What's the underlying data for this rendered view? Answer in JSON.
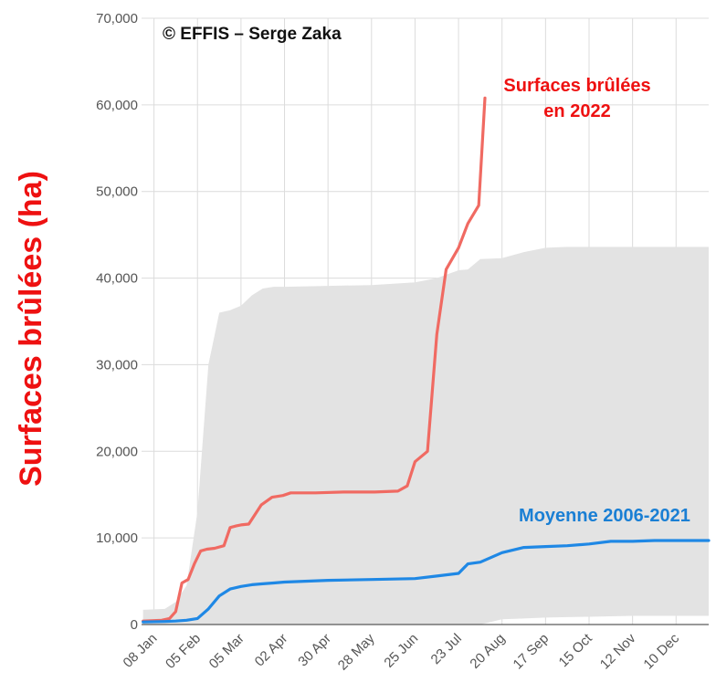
{
  "chart_data": {
    "type": "line",
    "credit": "© EFFIS – Serge Zaka",
    "xlabel": "",
    "ylabel": "Surfaces brûlées (ha)",
    "ylim": [
      0,
      70000
    ],
    "x_ticks": [
      {
        "label": "08 Jan",
        "day": 8
      },
      {
        "label": "05 Feb",
        "day": 36
      },
      {
        "label": "05 Mar",
        "day": 64
      },
      {
        "label": "02 Apr",
        "day": 92
      },
      {
        "label": "30 Apr",
        "day": 120
      },
      {
        "label": "28 May",
        "day": 148
      },
      {
        "label": "25 Jun",
        "day": 176
      },
      {
        "label": "23 Jul",
        "day": 204
      },
      {
        "label": "20 Aug",
        "day": 232
      },
      {
        "label": "17 Sep",
        "day": 260
      },
      {
        "label": "15 Oct",
        "day": 288
      },
      {
        "label": "12 Nov",
        "day": 316
      },
      {
        "label": "10 Dec",
        "day": 344
      }
    ],
    "y_ticks": [
      {
        "label": "0",
        "value": 0
      },
      {
        "label": "10,000",
        "value": 10000
      },
      {
        "label": "20,000",
        "value": 20000
      },
      {
        "label": "30,000",
        "value": 30000
      },
      {
        "label": "40,000",
        "value": 40000
      },
      {
        "label": "50,000",
        "value": 50000
      },
      {
        "label": "60,000",
        "value": 60000
      },
      {
        "label": "70,000",
        "value": 70000
      }
    ],
    "grid": true,
    "range_band": {
      "color": "#e3e3e3",
      "x": [
        1,
        15,
        22,
        29,
        36,
        43,
        50,
        57,
        64,
        71,
        78,
        85,
        92,
        120,
        148,
        176,
        190,
        204,
        210,
        218,
        232,
        246,
        260,
        274,
        288,
        302,
        316,
        330,
        344,
        365
      ],
      "upper": [
        1700,
        1800,
        2600,
        4500,
        13000,
        30000,
        36000,
        36300,
        36800,
        38000,
        38800,
        39000,
        39000,
        39100,
        39200,
        39500,
        40000,
        40900,
        41000,
        42200,
        42300,
        43000,
        43500,
        43600,
        43600,
        43600,
        43600,
        43600,
        43600,
        43600
      ],
      "lower": [
        0,
        0,
        0,
        0,
        0,
        0,
        0,
        0,
        0,
        0,
        0,
        0,
        0,
        0,
        0,
        0,
        0,
        0,
        0,
        0,
        600,
        700,
        800,
        850,
        900,
        950,
        1000,
        1000,
        1000,
        1000
      ]
    },
    "series": [
      {
        "name": "Surfaces brûlées en 2022",
        "label_lines": [
          "Surfaces brûlées",
          "en 2022"
        ],
        "color": "#f06a62",
        "x": [
          1,
          13,
          18,
          22,
          26,
          30,
          34,
          38,
          42,
          47,
          53,
          57,
          61,
          64,
          69,
          77,
          84,
          91,
          96,
          102,
          112,
          130,
          150,
          165,
          171,
          176,
          184,
          190,
          196,
          204,
          210,
          217,
          221
        ],
        "y": [
          400,
          500,
          700,
          1500,
          4800,
          5200,
          7000,
          8500,
          8700,
          8800,
          9100,
          11200,
          11400,
          11500,
          11600,
          13800,
          14700,
          14900,
          15200,
          15200,
          15200,
          15300,
          15300,
          15400,
          16000,
          18800,
          20000,
          33500,
          41000,
          43500,
          46300,
          48400,
          60800
        ]
      },
      {
        "name": "Moyenne 2006-2021",
        "label_lines": [
          "Moyenne 2006-2021"
        ],
        "color": "#1f88e5",
        "x": [
          1,
          15,
          22,
          29,
          36,
          43,
          50,
          57,
          64,
          71,
          78,
          85,
          92,
          120,
          148,
          176,
          190,
          204,
          210,
          218,
          232,
          246,
          260,
          274,
          288,
          302,
          316,
          330,
          344,
          365
        ],
        "y": [
          300,
          350,
          400,
          500,
          700,
          1800,
          3300,
          4100,
          4400,
          4600,
          4700,
          4800,
          4900,
          5100,
          5200,
          5300,
          5600,
          5900,
          7000,
          7200,
          8300,
          8900,
          9000,
          9100,
          9300,
          9600,
          9600,
          9700,
          9700,
          9700
        ]
      }
    ]
  }
}
